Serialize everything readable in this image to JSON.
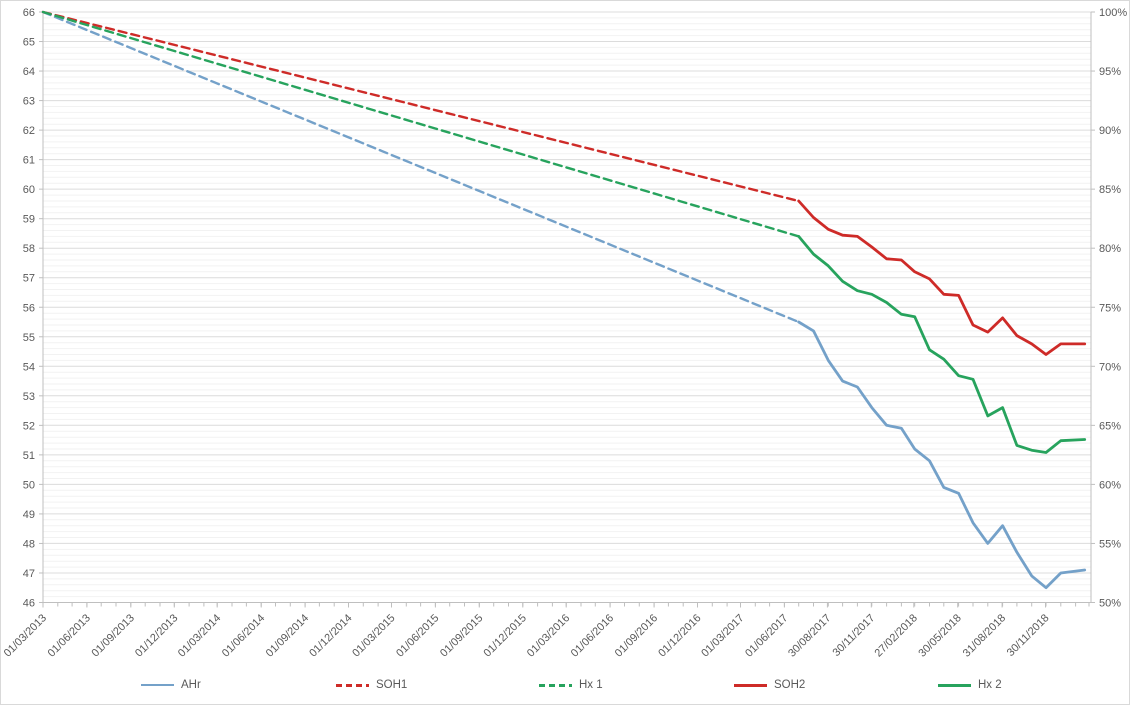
{
  "chart": {
    "background": "#ffffff",
    "border_color": "#d9d9d9",
    "axis_color": "#bfbfbf",
    "grid_major_color": "#dcdcdc",
    "grid_minor_color": "#f2f2f2",
    "label_color": "#595959",
    "left_axis_labels": [
      [
        66,
        "66"
      ],
      [
        65,
        "65"
      ],
      [
        64,
        "64"
      ],
      [
        63,
        "63"
      ],
      [
        62,
        "62"
      ],
      [
        61,
        "61"
      ],
      [
        60,
        "60"
      ],
      [
        59,
        "59"
      ],
      [
        58,
        "58"
      ],
      [
        57,
        "57"
      ],
      [
        56,
        "56"
      ],
      [
        55,
        "55"
      ],
      [
        54,
        "54"
      ],
      [
        53,
        "53"
      ],
      [
        52,
        "52"
      ],
      [
        51,
        "51"
      ],
      [
        50,
        "50"
      ],
      [
        49,
        "49"
      ],
      [
        48,
        "48"
      ],
      [
        47,
        "47"
      ],
      [
        46,
        "46"
      ]
    ],
    "right_axis_labels": [
      [
        100,
        "100%"
      ],
      [
        95,
        "95%"
      ],
      [
        90,
        "90%"
      ],
      [
        85,
        "85%"
      ],
      [
        80,
        "80%"
      ],
      [
        75,
        "75%"
      ],
      [
        70,
        "70%"
      ],
      [
        65,
        "65%"
      ],
      [
        60,
        "60%"
      ],
      [
        55,
        "55%"
      ],
      [
        50,
        "50%"
      ]
    ],
    "x_axis_labels": [
      [
        "2013-03-01",
        "01/03/2013"
      ],
      [
        "2013-06-01",
        "01/06/2013"
      ],
      [
        "2013-09-01",
        "01/09/2013"
      ],
      [
        "2013-12-01",
        "01/12/2013"
      ],
      [
        "2014-03-01",
        "01/03/2014"
      ],
      [
        "2014-06-01",
        "01/06/2014"
      ],
      [
        "2014-09-01",
        "01/09/2014"
      ],
      [
        "2014-12-01",
        "01/12/2014"
      ],
      [
        "2015-03-01",
        "01/03/2015"
      ],
      [
        "2015-06-01",
        "01/06/2015"
      ],
      [
        "2015-09-01",
        "01/09/2015"
      ],
      [
        "2015-12-01",
        "01/12/2015"
      ],
      [
        "2016-03-01",
        "01/03/2016"
      ],
      [
        "2016-06-01",
        "01/06/2016"
      ],
      [
        "2016-09-01",
        "01/09/2016"
      ],
      [
        "2016-12-01",
        "01/12/2016"
      ],
      [
        "2017-03-01",
        "01/03/2017"
      ],
      [
        "2017-06-01",
        "01/06/2017"
      ],
      [
        "2017-08-30",
        "30/08/2017"
      ],
      [
        "2017-11-30",
        "30/11/2017"
      ],
      [
        "2018-02-27",
        "27/02/2018"
      ],
      [
        "2018-05-30",
        "30/05/2018"
      ],
      [
        "2018-08-31",
        "31/08/2018"
      ],
      [
        "2018-11-30",
        "30/11/2018"
      ]
    ]
  },
  "chart_data": {
    "type": "line",
    "title": "",
    "legend_position": "bottom",
    "gridlines": "horizontal",
    "x_label_rotation": 45,
    "x_range": [
      "2013-03-01",
      "2019-03-06"
    ],
    "ylim_left": [
      46,
      66
    ],
    "ylim_right": [
      50,
      100
    ],
    "series": [
      {
        "name": "AHr",
        "axis": "left",
        "color": "#74A1C9",
        "legend_style": "solid",
        "segments": [
          {
            "style": "dashed",
            "points": [
              [
                "2013-03-01",
                66.0
              ],
              [
                "2017-07-01",
                55.5
              ]
            ]
          },
          {
            "style": "solid",
            "points": [
              [
                "2017-07-01",
                55.5
              ],
              [
                "2017-08-01",
                55.2
              ],
              [
                "2017-09-01",
                54.2
              ],
              [
                "2017-10-01",
                53.5
              ],
              [
                "2017-11-01",
                53.3
              ],
              [
                "2017-12-01",
                52.6
              ],
              [
                "2018-01-01",
                52.0
              ],
              [
                "2018-02-01",
                51.9
              ],
              [
                "2018-03-01",
                51.2
              ],
              [
                "2018-04-01",
                50.8
              ],
              [
                "2018-05-01",
                49.9
              ],
              [
                "2018-06-01",
                49.7
              ],
              [
                "2018-07-01",
                48.7
              ],
              [
                "2018-08-01",
                48.0
              ],
              [
                "2018-09-01",
                48.6
              ],
              [
                "2018-10-01",
                47.7
              ],
              [
                "2018-11-01",
                46.9
              ],
              [
                "2018-12-01",
                46.5
              ],
              [
                "2019-01-01",
                47.0
              ],
              [
                "2019-02-20",
                47.1
              ]
            ]
          }
        ]
      },
      {
        "name": "SOH1",
        "axis": "right",
        "color": "#CE2B28",
        "legend_style": "dashed",
        "segments": [
          {
            "style": "dashed",
            "points": [
              [
                "2013-03-01",
                100.0
              ],
              [
                "2017-07-01",
                84.0
              ]
            ]
          }
        ]
      },
      {
        "name": "Hx 1",
        "axis": "right",
        "color": "#27A35D",
        "legend_style": "dashed",
        "segments": [
          {
            "style": "dashed",
            "points": [
              [
                "2013-03-01",
                100.0
              ],
              [
                "2017-07-01",
                81.0
              ]
            ]
          }
        ]
      },
      {
        "name": "SOH2",
        "axis": "right",
        "color": "#CE2B28",
        "legend_style": "solid",
        "segments": [
          {
            "style": "solid",
            "points": [
              [
                "2017-07-01",
                84.0
              ],
              [
                "2017-08-01",
                82.6
              ],
              [
                "2017-09-01",
                81.6
              ],
              [
                "2017-10-01",
                81.1
              ],
              [
                "2017-11-01",
                81.0
              ],
              [
                "2017-12-01",
                80.1
              ],
              [
                "2018-01-01",
                79.1
              ],
              [
                "2018-02-01",
                79.0
              ],
              [
                "2018-03-01",
                78.0
              ],
              [
                "2018-04-01",
                77.4
              ],
              [
                "2018-05-01",
                76.1
              ],
              [
                "2018-06-01",
                76.0
              ],
              [
                "2018-07-01",
                73.5
              ],
              [
                "2018-08-01",
                72.9
              ],
              [
                "2018-09-01",
                74.1
              ],
              [
                "2018-10-01",
                72.6
              ],
              [
                "2018-11-01",
                71.9
              ],
              [
                "2018-12-01",
                71.0
              ],
              [
                "2019-01-01",
                71.9
              ],
              [
                "2019-02-20",
                71.9
              ]
            ]
          }
        ]
      },
      {
        "name": "Hx 2",
        "axis": "right",
        "color": "#27A35D",
        "legend_style": "solid",
        "segments": [
          {
            "style": "solid",
            "points": [
              [
                "2017-07-01",
                81.0
              ],
              [
                "2017-08-01",
                79.5
              ],
              [
                "2017-09-01",
                78.5
              ],
              [
                "2017-10-01",
                77.2
              ],
              [
                "2017-11-01",
                76.4
              ],
              [
                "2017-12-01",
                76.1
              ],
              [
                "2018-01-01",
                75.4
              ],
              [
                "2018-02-01",
                74.4
              ],
              [
                "2018-03-01",
                74.2
              ],
              [
                "2018-04-01",
                71.4
              ],
              [
                "2018-05-01",
                70.6
              ],
              [
                "2018-06-01",
                69.2
              ],
              [
                "2018-07-01",
                68.9
              ],
              [
                "2018-08-01",
                65.8
              ],
              [
                "2018-09-01",
                66.5
              ],
              [
                "2018-10-01",
                63.3
              ],
              [
                "2018-11-01",
                62.9
              ],
              [
                "2018-12-01",
                62.7
              ],
              [
                "2019-01-01",
                63.7
              ],
              [
                "2019-02-20",
                63.8
              ]
            ]
          }
        ]
      }
    ]
  }
}
